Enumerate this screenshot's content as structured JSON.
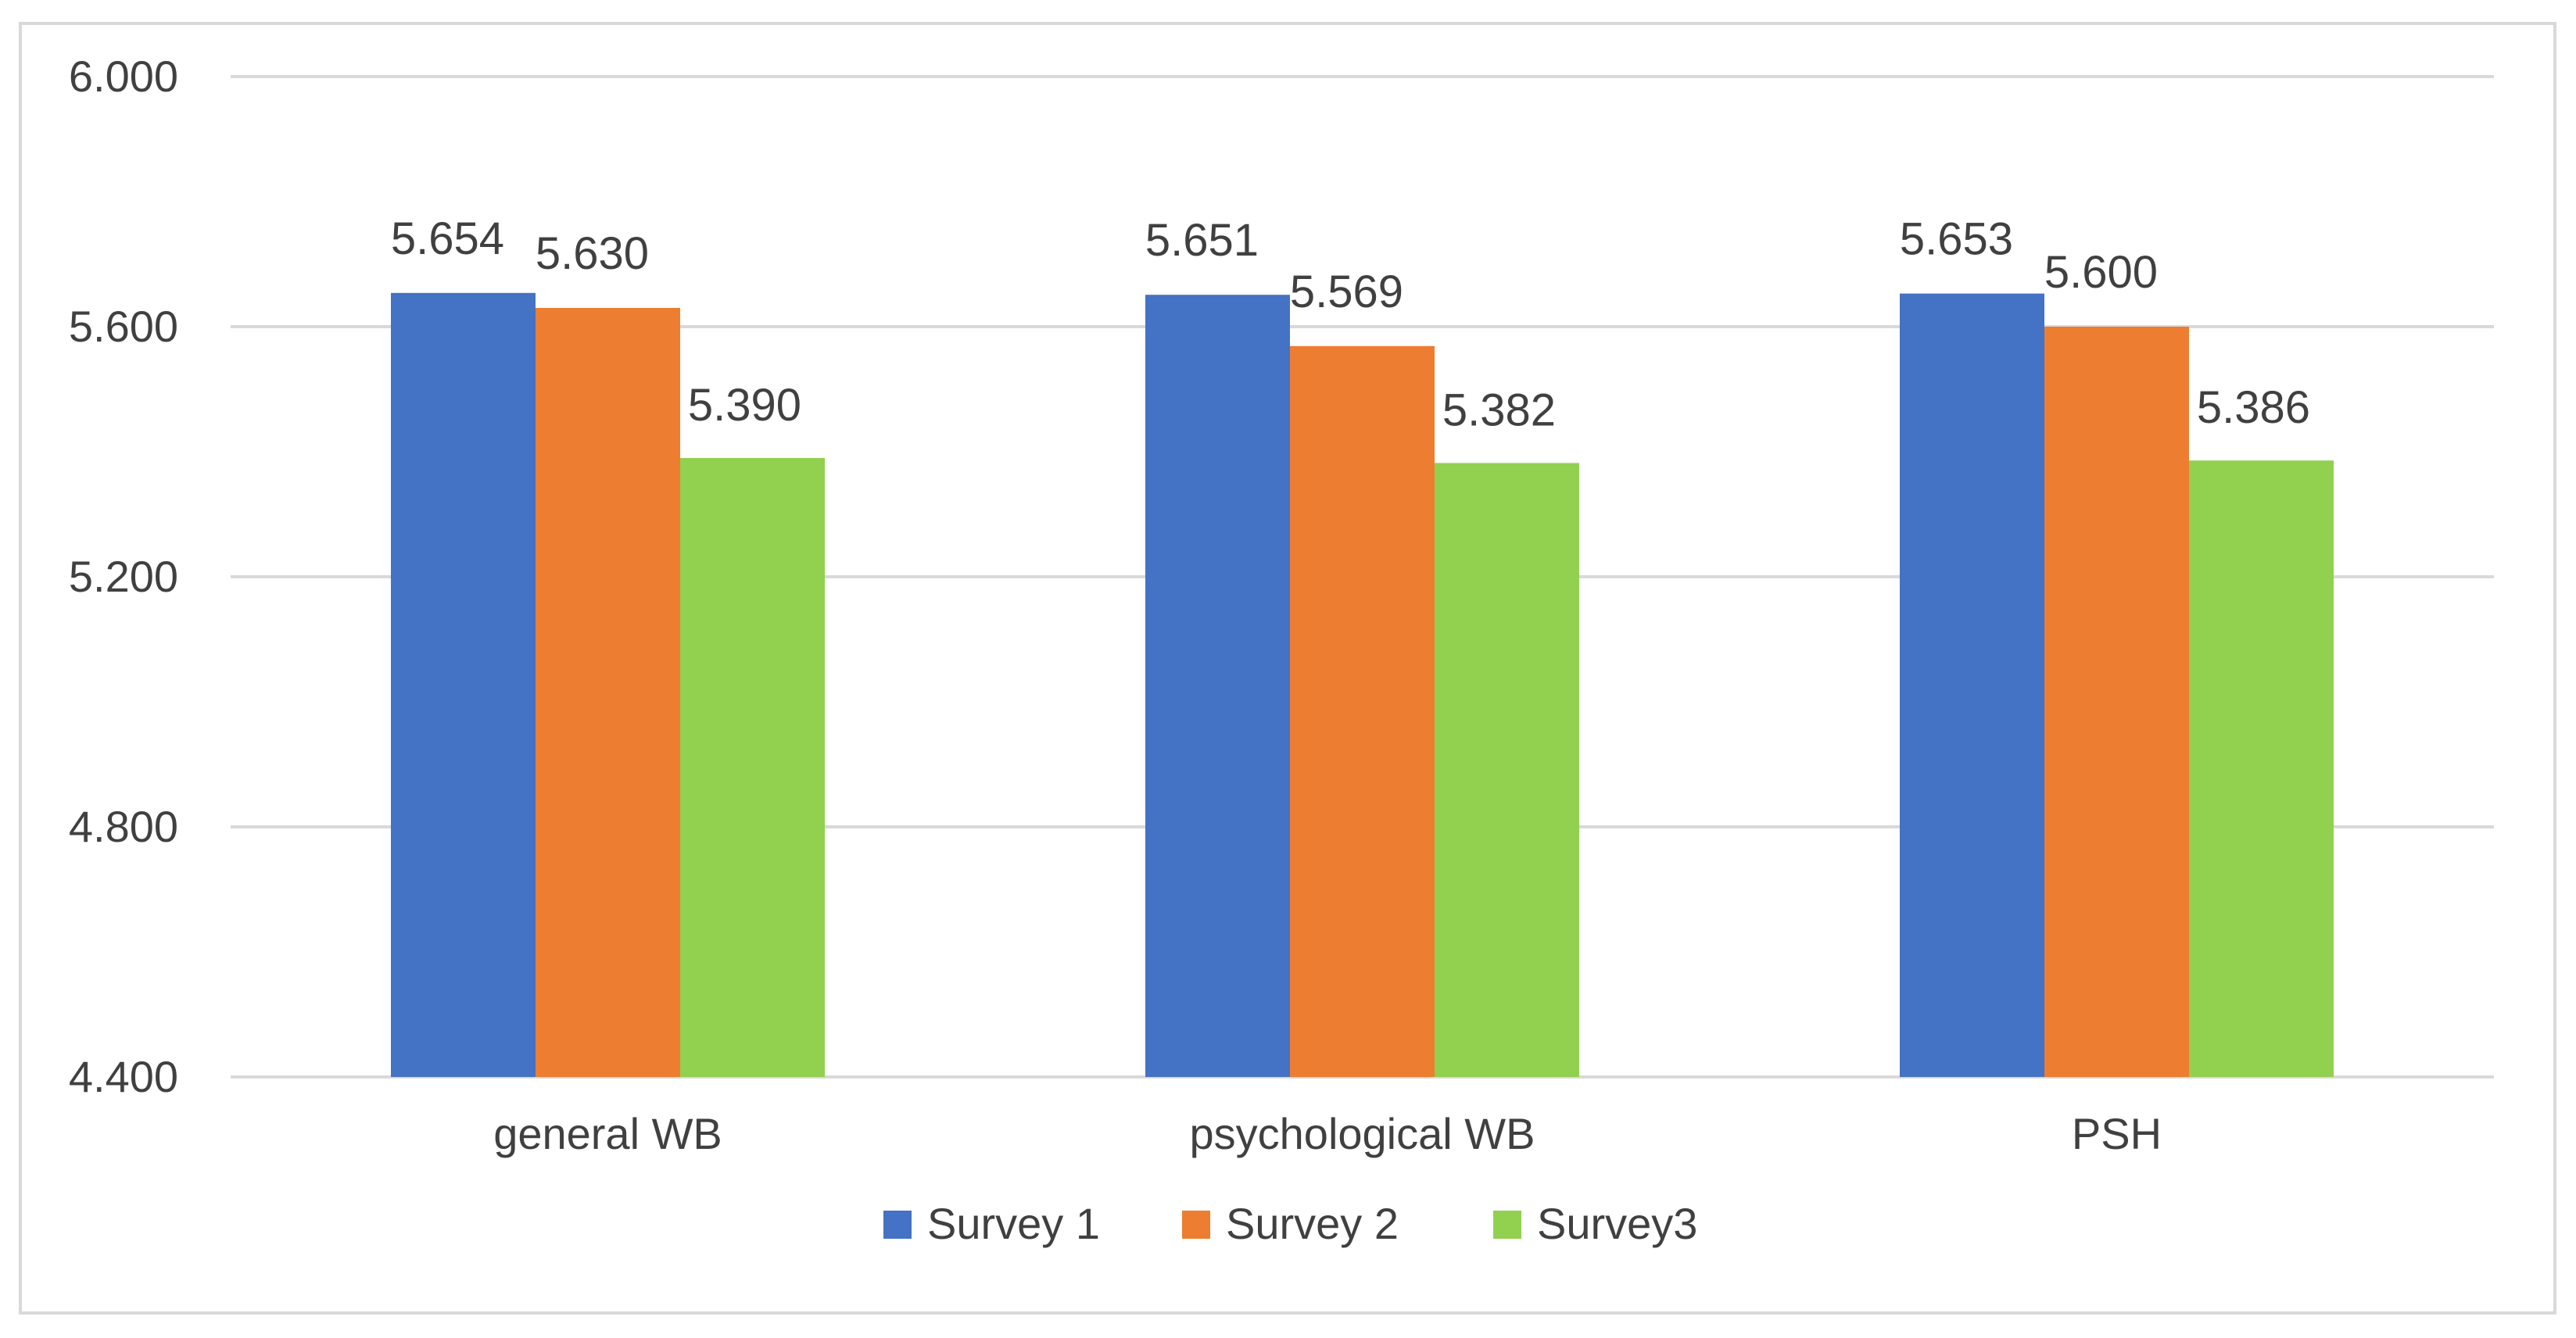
{
  "chart_data": {
    "type": "bar",
    "categories": [
      "general WB",
      "psychological WB",
      "PSH"
    ],
    "series": [
      {
        "name": "Survey 1",
        "values": [
          5.654,
          5.651,
          5.653
        ],
        "color": "#4472C4"
      },
      {
        "name": "Survey 2",
        "values": [
          5.63,
          5.569,
          5.6
        ],
        "color": "#ED7D31"
      },
      {
        "name": "Survey3",
        "values": [
          5.39,
          5.382,
          5.386
        ],
        "color": "#92D050"
      }
    ],
    "value_labels": [
      [
        "5.654",
        "5.651",
        "5.653"
      ],
      [
        "5.630",
        "5.569",
        "5.600"
      ],
      [
        "5.390",
        "5.382",
        "5.386"
      ]
    ],
    "yticks": [
      4.4,
      4.8,
      5.2,
      5.6,
      6.0
    ],
    "ytick_labels": [
      "4.400",
      "4.800",
      "5.200",
      "5.600",
      "6.000"
    ],
    "ylim": [
      4.4,
      6.0
    ],
    "grid": true,
    "legend_position": "bottom",
    "gridline_color": "#d9d9d9",
    "text_color": "#404040"
  }
}
